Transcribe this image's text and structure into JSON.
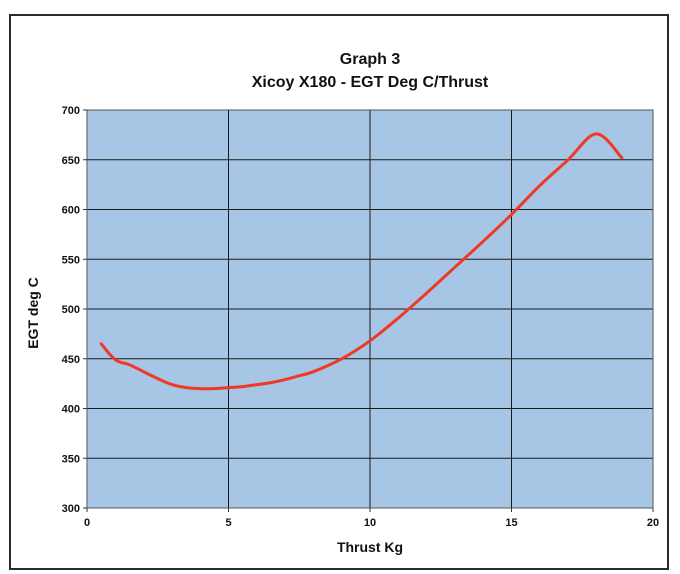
{
  "chart_data": {
    "type": "line",
    "title": "Graph 3",
    "subtitle": "Xicoy X180 - EGT Deg C/Thrust",
    "xlabel": "Thrust Kg",
    "ylabel": "EGT deg C",
    "xlim": [
      0,
      20
    ],
    "ylim": [
      300,
      700
    ],
    "xticks": [
      0,
      5,
      10,
      15,
      20
    ],
    "yticks": [
      300,
      350,
      400,
      450,
      500,
      550,
      600,
      650,
      700
    ],
    "grid": true,
    "legend": "none",
    "plot_background": "#a7c6e6",
    "series": [
      {
        "color": "#ee3a24",
        "x": [
          0.5,
          1.0,
          1.5,
          2.0,
          2.5,
          3.0,
          3.5,
          4.0,
          4.5,
          5.0,
          5.5,
          6.0,
          6.5,
          7.0,
          7.5,
          8.0,
          9.0,
          10.0,
          11.0,
          12.0,
          13.0,
          14.0,
          15.0,
          16.0,
          17.0,
          18.0,
          18.9
        ],
        "y": [
          465,
          449,
          444,
          437,
          430,
          424,
          421,
          420,
          420,
          421,
          422,
          424,
          426,
          429,
          433,
          437,
          450,
          468,
          491,
          516,
          542,
          568,
          595,
          624,
          650,
          676,
          652
        ]
      }
    ]
  }
}
